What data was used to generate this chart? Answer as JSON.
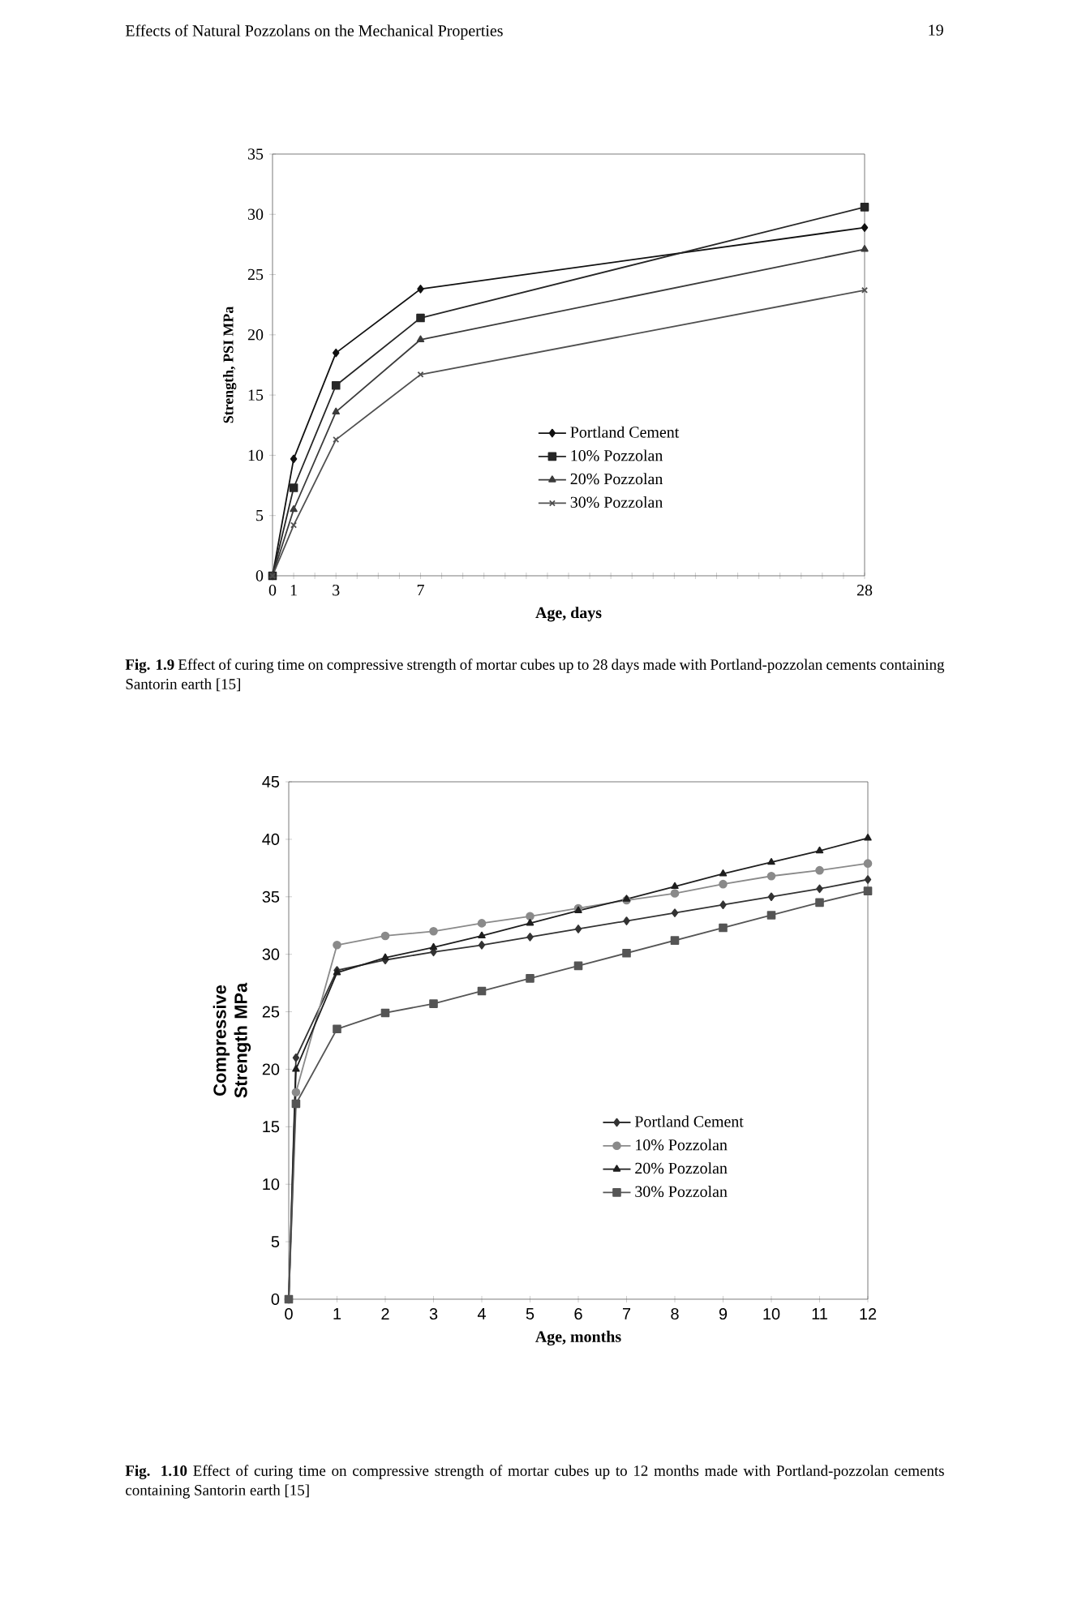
{
  "chart_data": [
    {
      "type": "line",
      "xlabel": "Age, days",
      "ylabel": "Strength, PSI MPa",
      "x": [
        0,
        1,
        3,
        7,
        28
      ],
      "series": [
        {
          "name": "Portland Cement",
          "color": "#111111",
          "marker": "diamond",
          "values": [
            0,
            9.7,
            18.5,
            23.8,
            28.9
          ]
        },
        {
          "name": "10% Pozzolan",
          "color": "#262626",
          "marker": "square",
          "values": [
            0,
            7.3,
            15.8,
            21.4,
            30.6
          ]
        },
        {
          "name": "20% Pozzolan",
          "color": "#3b3b3b",
          "marker": "triangle",
          "values": [
            0,
            5.5,
            13.6,
            19.6,
            27.1
          ]
        },
        {
          "name": "30% Pozzolan",
          "color": "#505050",
          "marker": "cross",
          "values": [
            0,
            4.2,
            11.3,
            16.7,
            23.7
          ]
        }
      ],
      "xlim": [
        0,
        28
      ],
      "xticks": [
        0,
        1,
        {
          "value": 2,
          "label": null
        },
        3,
        {
          "value": 4,
          "label": null
        },
        {
          "value": 5,
          "label": null
        },
        {
          "value": 6,
          "label": null
        },
        7,
        {
          "value": 8,
          "label": null
        },
        {
          "value": 9,
          "label": null
        },
        {
          "value": 10,
          "label": null
        },
        {
          "value": 11,
          "label": null
        },
        {
          "value": 12,
          "label": null
        },
        {
          "value": 13,
          "label": null
        },
        {
          "value": 14,
          "label": null
        },
        {
          "value": 15,
          "label": null
        },
        {
          "value": 16,
          "label": null
        },
        {
          "value": 17,
          "label": null
        },
        {
          "value": 18,
          "label": null
        },
        {
          "value": 19,
          "label": null
        },
        {
          "value": 20,
          "label": null
        },
        {
          "value": 21,
          "label": null
        },
        {
          "value": 22,
          "label": null
        },
        {
          "value": 23,
          "label": null
        },
        {
          "value": 24,
          "label": null
        },
        {
          "value": 25,
          "label": null
        },
        {
          "value": 26,
          "label": null
        },
        {
          "value": 27,
          "label": null
        },
        28
      ],
      "ylim": [
        0,
        35
      ],
      "yticks": [
        0,
        5,
        10,
        15,
        20,
        25,
        30,
        35
      ],
      "legend": "bottom",
      "line_style": "solid",
      "annotations": [
        "Effects of Natural Pozzolans on the Mechanical Properties",
        "19",
        "**Fig. 1.9** Effect of curing time on compressive strength of mortar cubes up to 28 days made with Portland-pozzolan cements containing Santorin earth [15]"
      ]
    },
    {
      "type": "line",
      "xlabel": "Age, months",
      "ylabel": "Compressive Strength MPa",
      "x": [
        0,
        0.15,
        1,
        2,
        3,
        4,
        5,
        6,
        7,
        8,
        9,
        10,
        11,
        12
      ],
      "series": [
        {
          "name": "Portland Cement",
          "color": "#333333",
          "marker": "diamond",
          "values": [
            0,
            21,
            28.6,
            29.5,
            30.2,
            30.8,
            31.5,
            32.2,
            32.9,
            33.6,
            34.3,
            35.0,
            35.7,
            36.5
          ]
        },
        {
          "name": "10% Pozzolan",
          "color": "#8a8a8a",
          "marker": "circle",
          "values": [
            0,
            18,
            30.8,
            31.6,
            32.0,
            32.7,
            33.3,
            34.0,
            34.7,
            35.3,
            36.1,
            36.8,
            37.3,
            37.9
          ]
        },
        {
          "name": "20% Pozzolan",
          "color": "#1e1e1e",
          "marker": "triangle",
          "values": [
            0,
            20,
            28.4,
            29.7,
            30.6,
            31.6,
            32.7,
            33.8,
            34.8,
            35.9,
            37.0,
            38.0,
            39.0,
            40.1
          ]
        },
        {
          "name": "30% Pozzolan",
          "color": "#555555",
          "marker": "square",
          "values": [
            0,
            17,
            23.5,
            24.9,
            25.7,
            26.8,
            27.9,
            29.0,
            30.1,
            31.2,
            32.3,
            33.4,
            34.5,
            35.5
          ]
        }
      ],
      "xlim": [
        0,
        12
      ],
      "xticks": [
        0,
        1,
        2,
        3,
        4,
        5,
        6,
        7,
        8,
        9,
        10,
        11,
        12
      ],
      "ylim": [
        0,
        45
      ],
      "yticks": [
        0,
        5,
        10,
        15,
        20,
        25,
        30,
        35,
        40,
        45
      ],
      "legend": "bottom right",
      "line_style": "solid",
      "annotations": [
        "**Fig. 1.10** Effect of curing time on compressive strength of mortar cubes up to 12 months made with Portland-pozzolan cements containing Santorin earth [15]"
      ]
    }
  ]
}
